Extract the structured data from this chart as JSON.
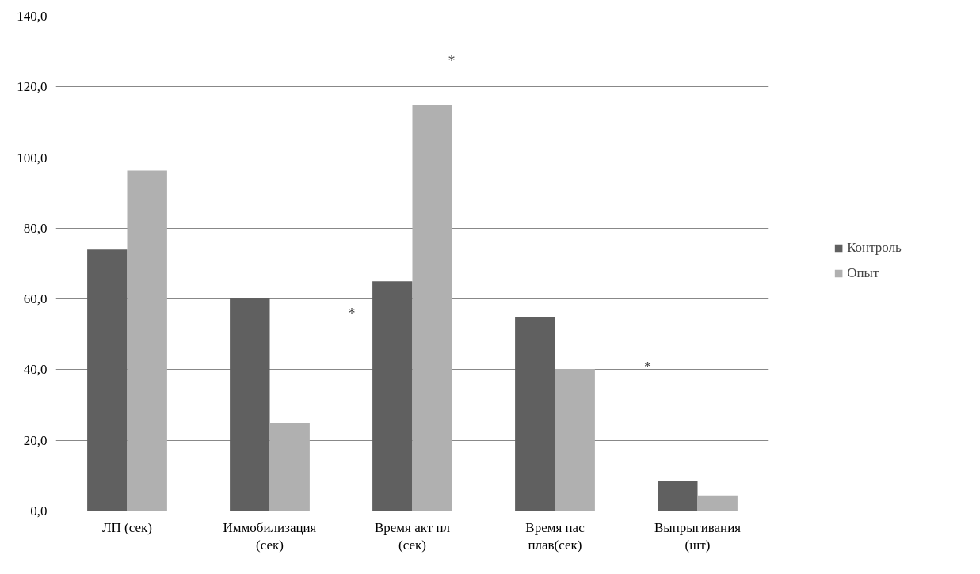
{
  "chart_data": {
    "type": "bar",
    "categories": [
      "ЛП (сек)",
      "Иммобилизация (сек)",
      "Время акт пл (сек)",
      "Время пас плав(сек)",
      "Выпрыгивания (шт)"
    ],
    "series": [
      {
        "name": "Контроль",
        "color": "#606060",
        "values": [
          74.0,
          60.3,
          65.0,
          54.8,
          8.4
        ]
      },
      {
        "name": "Опыт",
        "color": "#b0b0b0",
        "values": [
          96.3,
          25.0,
          114.8,
          40.2,
          4.4
        ]
      }
    ],
    "ylim": [
      0,
      140
    ],
    "yticks": [
      {
        "value": 0,
        "label": "0,0"
      },
      {
        "value": 20,
        "label": "20,0"
      },
      {
        "value": 40,
        "label": "40,0"
      },
      {
        "value": 60,
        "label": "60,0"
      },
      {
        "value": 80,
        "label": "80,0"
      },
      {
        "value": 100,
        "label": "100,0"
      },
      {
        "value": 120,
        "label": "120,0"
      },
      {
        "value": 140,
        "label": "140,0"
      }
    ],
    "grid": "y",
    "legend": "right",
    "annotations": [
      "*",
      "*",
      "*"
    ]
  }
}
